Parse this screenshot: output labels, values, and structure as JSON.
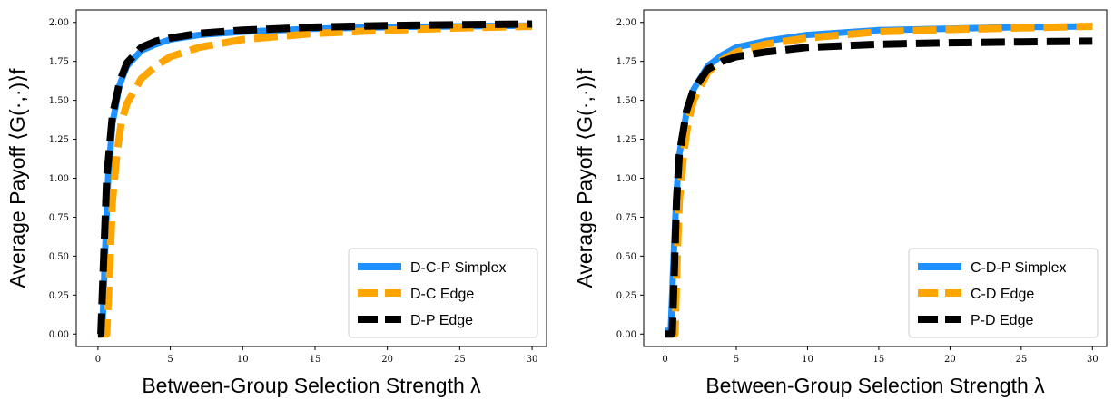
{
  "chart_data": [
    {
      "type": "line",
      "xlabel": "Between-Group Selection Strength λ",
      "ylabel": "Average Payoff ⟨G(·,·)⟩f",
      "xlim": [
        -1.5,
        31
      ],
      "ylim": [
        -0.08,
        2.08
      ],
      "xticks": [
        0,
        5,
        10,
        15,
        20,
        25,
        30
      ],
      "yticks": [
        "0.00",
        "0.25",
        "0.50",
        "0.75",
        "1.00",
        "1.25",
        "1.50",
        "1.75",
        "2.00"
      ],
      "legend_position": "lower-right",
      "grid": false,
      "series": [
        {
          "name": "D-C-P Simplex",
          "color": "#1e90ff",
          "style": "solid",
          "x": [
            0,
            0.3,
            0.5,
            0.7,
            1,
            1.5,
            2,
            3,
            4,
            5,
            7,
            10,
            15,
            20,
            25,
            30
          ],
          "y": [
            0.02,
            0.02,
            0.55,
            1.0,
            1.35,
            1.6,
            1.72,
            1.82,
            1.86,
            1.89,
            1.92,
            1.94,
            1.96,
            1.97,
            1.975,
            1.98
          ]
        },
        {
          "name": "D-C Edge",
          "color": "#ffa500",
          "style": "dashed",
          "x": [
            0,
            0.6,
            0.8,
            1,
            1.3,
            1.6,
            2,
            3,
            4,
            5,
            7,
            10,
            15,
            20,
            25,
            30
          ],
          "y": [
            0.0,
            0.0,
            0.4,
            0.85,
            1.15,
            1.35,
            1.48,
            1.64,
            1.72,
            1.78,
            1.84,
            1.89,
            1.93,
            1.95,
            1.965,
            1.975
          ]
        },
        {
          "name": "D-P Edge",
          "color": "#000000",
          "style": "dashed",
          "x": [
            0,
            0.2,
            0.4,
            0.6,
            1,
            1.5,
            2,
            3,
            4,
            5,
            7,
            10,
            15,
            20,
            25,
            30
          ],
          "y": [
            0.0,
            0.0,
            0.5,
            1.0,
            1.4,
            1.62,
            1.74,
            1.84,
            1.88,
            1.9,
            1.93,
            1.95,
            1.97,
            1.98,
            1.985,
            1.99
          ]
        }
      ]
    },
    {
      "type": "line",
      "xlabel": "Between-Group Selection Strength λ",
      "ylabel": "Average Payoff ⟨G(·,·)⟩f",
      "xlim": [
        -1.5,
        31
      ],
      "ylim": [
        -0.08,
        2.08
      ],
      "xticks": [
        0,
        5,
        10,
        15,
        20,
        25,
        30
      ],
      "yticks": [
        "0.00",
        "0.25",
        "0.50",
        "0.75",
        "1.00",
        "1.25",
        "1.50",
        "1.75",
        "2.00"
      ],
      "legend_position": "lower-right",
      "grid": false,
      "series": [
        {
          "name": "C-D-P Simplex",
          "color": "#1e90ff",
          "style": "solid",
          "x": [
            0,
            0.4,
            0.6,
            0.8,
            1,
            1.5,
            2,
            3,
            4,
            5,
            7,
            10,
            15,
            20,
            25,
            30
          ],
          "y": [
            0.02,
            0.02,
            0.5,
            0.9,
            1.15,
            1.42,
            1.57,
            1.72,
            1.79,
            1.84,
            1.88,
            1.92,
            1.95,
            1.96,
            1.97,
            1.975
          ]
        },
        {
          "name": "C-D Edge",
          "color": "#ffa500",
          "style": "dashed",
          "x": [
            0,
            0.7,
            0.85,
            1,
            1.3,
            1.6,
            2,
            3,
            4,
            5,
            7,
            10,
            15,
            20,
            25,
            30
          ],
          "y": [
            0.0,
            0.0,
            0.5,
            0.85,
            1.15,
            1.35,
            1.5,
            1.68,
            1.76,
            1.81,
            1.86,
            1.9,
            1.94,
            1.955,
            1.965,
            1.975
          ]
        },
        {
          "name": "P-D Edge",
          "color": "#000000",
          "style": "dashed",
          "x": [
            0,
            0.5,
            0.65,
            0.8,
            1,
            1.5,
            2,
            3,
            4,
            5,
            7,
            10,
            15,
            20,
            25,
            30
          ],
          "y": [
            0.0,
            0.0,
            0.4,
            0.85,
            1.15,
            1.43,
            1.57,
            1.7,
            1.75,
            1.78,
            1.81,
            1.84,
            1.86,
            1.87,
            1.875,
            1.88
          ]
        }
      ]
    }
  ]
}
